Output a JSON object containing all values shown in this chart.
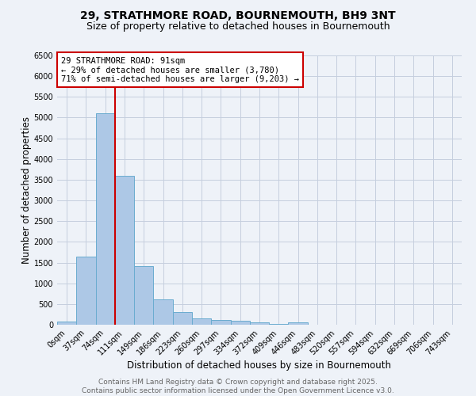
{
  "title_line1": "29, STRATHMORE ROAD, BOURNEMOUTH, BH9 3NT",
  "title_line2": "Size of property relative to detached houses in Bournemouth",
  "xlabel": "Distribution of detached houses by size in Bournemouth",
  "ylabel": "Number of detached properties",
  "bin_labels": [
    "0sqm",
    "37sqm",
    "74sqm",
    "111sqm",
    "149sqm",
    "186sqm",
    "223sqm",
    "260sqm",
    "297sqm",
    "334sqm",
    "372sqm",
    "409sqm",
    "446sqm",
    "483sqm",
    "520sqm",
    "557sqm",
    "594sqm",
    "632sqm",
    "669sqm",
    "706sqm",
    "743sqm"
  ],
  "bar_heights": [
    75,
    1650,
    5100,
    3600,
    1420,
    620,
    310,
    155,
    120,
    100,
    50,
    20,
    50,
    0,
    0,
    0,
    0,
    0,
    0,
    0,
    0
  ],
  "bar_color": "#adc8e6",
  "bar_edge_color": "#6aacd0",
  "ylim": [
    0,
    6500
  ],
  "yticks": [
    0,
    500,
    1000,
    1500,
    2000,
    2500,
    3000,
    3500,
    4000,
    4500,
    5000,
    5500,
    6000,
    6500
  ],
  "vline_x": 2.5,
  "vline_color": "#cc0000",
  "annotation_text": "29 STRATHMORE ROAD: 91sqm\n← 29% of detached houses are smaller (3,780)\n71% of semi-detached houses are larger (9,203) →",
  "annotation_box_color": "#cc0000",
  "footer_line1": "Contains HM Land Registry data © Crown copyright and database right 2025.",
  "footer_line2": "Contains public sector information licensed under the Open Government Licence v3.0.",
  "background_color": "#eef2f8",
  "grid_color": "#c5cede",
  "title_fontsize": 10,
  "subtitle_fontsize": 9,
  "tick_fontsize": 7,
  "label_fontsize": 8.5,
  "annotation_fontsize": 7.5,
  "footer_fontsize": 6.5
}
